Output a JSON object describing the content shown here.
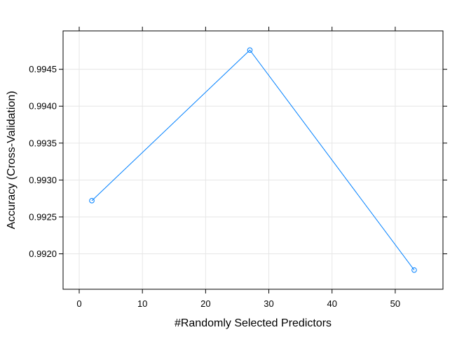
{
  "chart_data": {
    "type": "line",
    "title": "",
    "xlabel": "#Randomly Selected Predictors",
    "ylabel": "Accuracy (Cross-Validation)",
    "x": [
      2,
      27,
      53
    ],
    "series": [
      {
        "values": [
          0.99272,
          0.99476,
          0.99178
        ]
      }
    ],
    "xlim": [
      -2.55,
      57.55
    ],
    "ylim": [
      0.99152,
      0.99502
    ],
    "xticks": [
      0,
      10,
      20,
      30,
      40,
      50
    ],
    "xtick_labels": [
      "0",
      "10",
      "20",
      "30",
      "40",
      "50"
    ],
    "yticks": [
      0.992,
      0.9925,
      0.993,
      0.9935,
      0.994,
      0.9945
    ],
    "ytick_labels": [
      "0.9920",
      "0.9925",
      "0.9930",
      "0.9935",
      "0.9940",
      "0.9945"
    ],
    "grid": true,
    "legend": "none",
    "colors": {
      "line": "#0080ff",
      "grid": "#e6e6e6",
      "frame": "#000000"
    }
  }
}
